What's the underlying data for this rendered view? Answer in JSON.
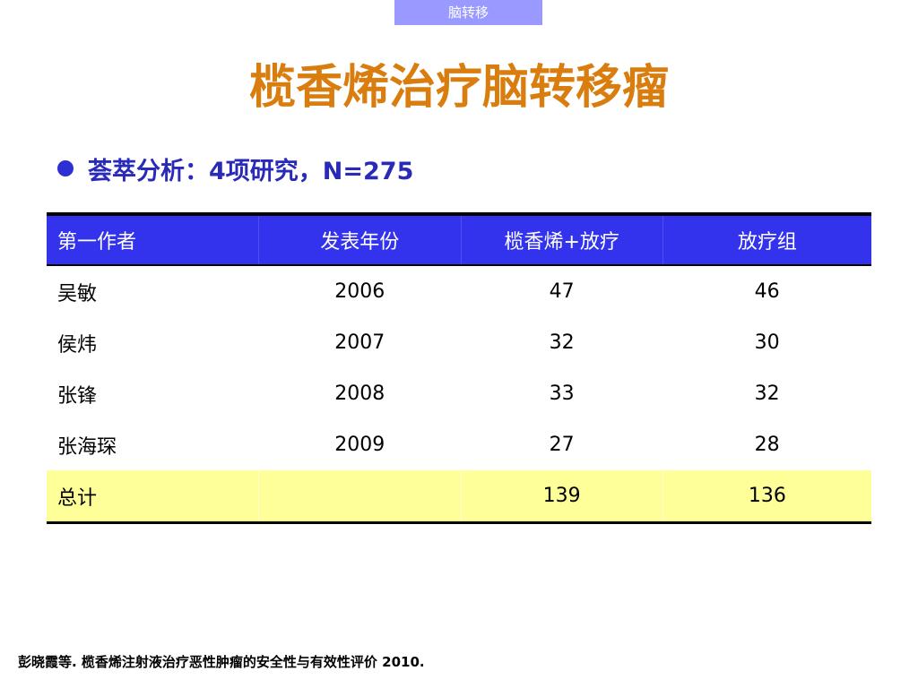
{
  "header_tag": "脑转移",
  "title": "榄香烯治疗脑转移瘤",
  "bullet": "荟萃分析：4项研究，N=275",
  "table": {
    "headers": [
      "第一作者",
      "发表年份",
      "榄香烯+放疗",
      "放疗组"
    ],
    "rows": [
      [
        "吴敏",
        "2006",
        "47",
        "46"
      ],
      [
        "侯炜",
        "2007",
        "32",
        "30"
      ],
      [
        "张锋",
        "2008",
        "33",
        "32"
      ],
      [
        "张海琛",
        "2009",
        "27",
        "28"
      ]
    ],
    "total": [
      "总计",
      "",
      "139",
      "136"
    ]
  },
  "footnote": "彭晓霞等. 榄香烯注射液治疗恶性肿瘤的安全性与有效性评价 2010.",
  "colors": {
    "tag_bg": "#9999ff",
    "title": "#d97d0e",
    "bullet": "#2a2ab8",
    "header_bg": "#3333ee",
    "total_bg": "#ffff99"
  }
}
